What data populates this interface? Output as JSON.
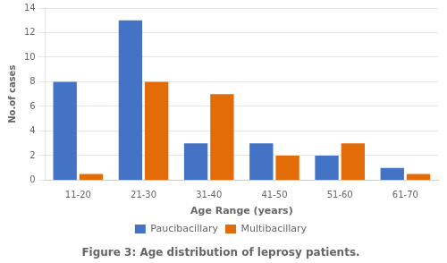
{
  "chart_data": {
    "type": "bar",
    "title": "Figure 3: Age distribution of leprosy patients.",
    "xlabel": "Age Range (years)",
    "ylabel": "No.of cases",
    "categories": [
      "11-20",
      "21-30",
      "31-40",
      "41-50",
      "51-60",
      "61-70"
    ],
    "series": [
      {
        "name": "Paucibacillary",
        "color": "#4472C4",
        "values": [
          8,
          13,
          3,
          3,
          2,
          1
        ]
      },
      {
        "name": "Multibacillary",
        "color": "#E36C09",
        "values": [
          0.5,
          8,
          7,
          2,
          3,
          0.5
        ]
      }
    ],
    "ylim": [
      0,
      14
    ],
    "yticks": [
      0,
      2,
      4,
      6,
      8,
      10,
      12,
      14
    ],
    "grid": true,
    "legend": "bottom"
  }
}
